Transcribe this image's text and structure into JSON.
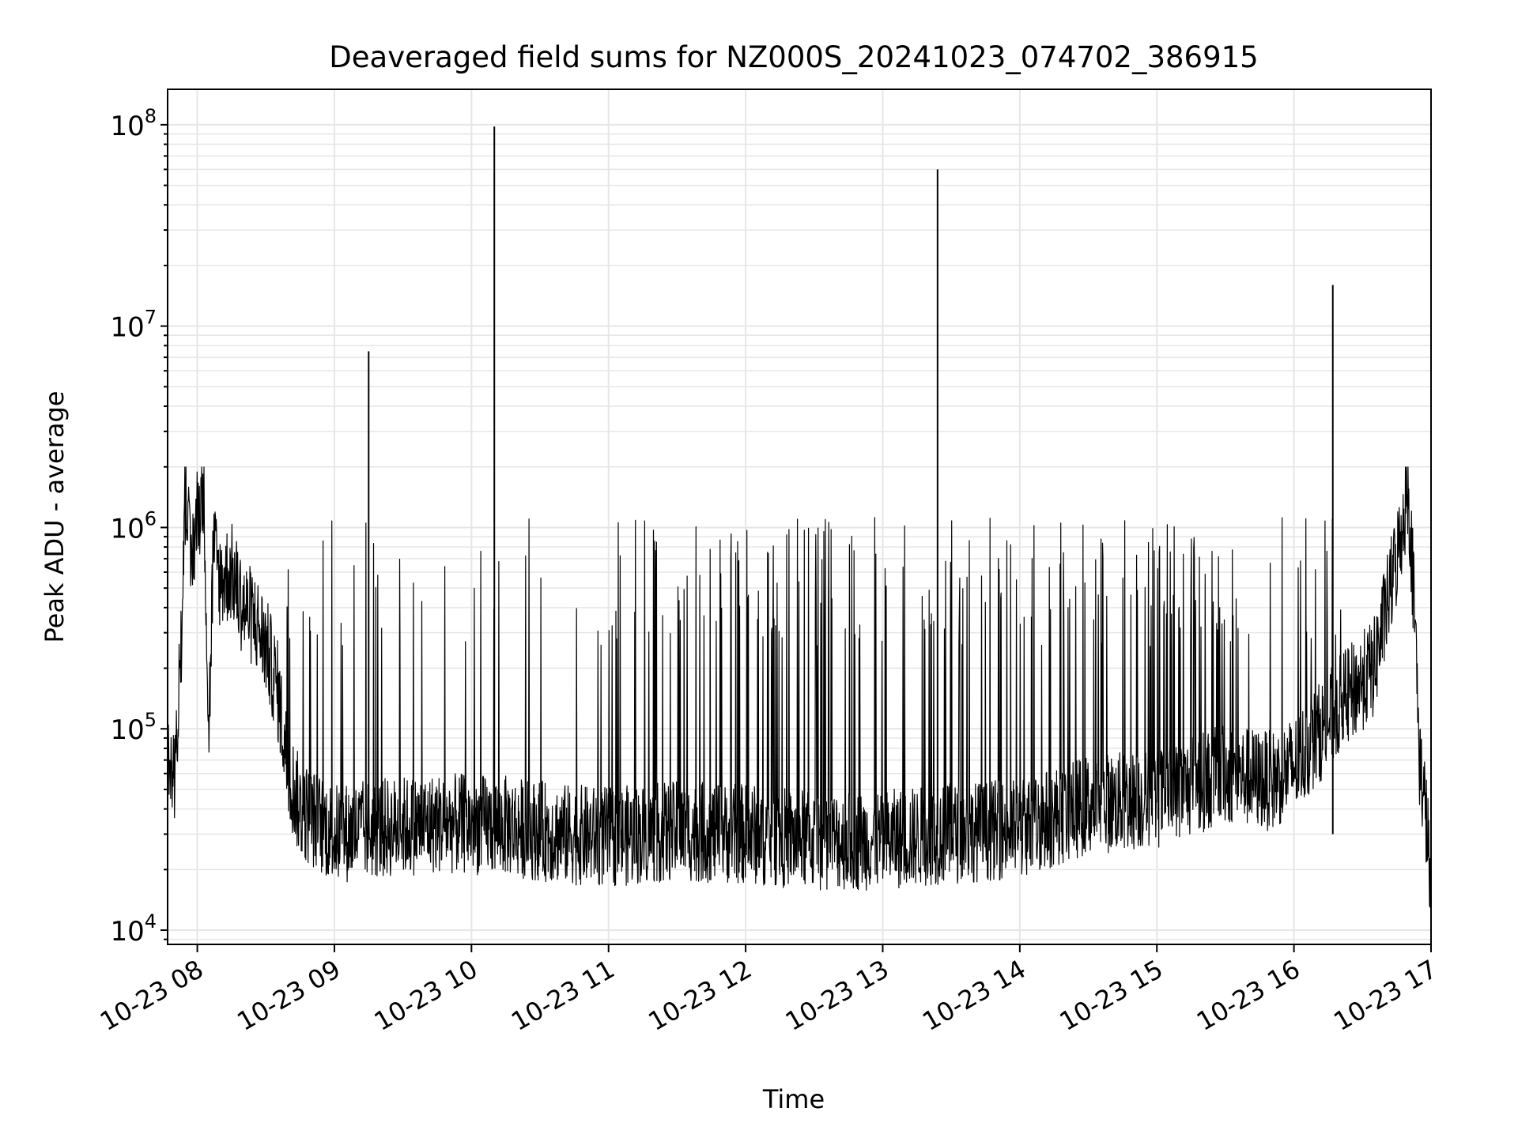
{
  "chart_data": {
    "type": "line",
    "title": "Deaveraged field sums for NZ000S_20241023_074702_386915",
    "xlabel": "Time",
    "ylabel": "Peak ADU - average",
    "x_type": "datetime",
    "xlim": [
      "2024-10-23 07:47",
      "2024-10-23 17:00"
    ],
    "ylim": [
      8500,
      150000000
    ],
    "yscale": "log",
    "x_tick_labels": [
      "10-23 08",
      "10-23 09",
      "10-23 10",
      "10-23 11",
      "10-23 12",
      "10-23 13",
      "10-23 14",
      "10-23 15",
      "10-23 16",
      "10-23 17"
    ],
    "y_tick_labels": [
      {
        "base": "10",
        "exp": "4"
      },
      {
        "base": "10",
        "exp": "5"
      },
      {
        "base": "10",
        "exp": "6"
      },
      {
        "base": "10",
        "exp": "7"
      },
      {
        "base": "10",
        "exp": "8"
      }
    ],
    "grid": true,
    "line_color": "#000000",
    "grid_color": "#e6e6e6",
    "series": [
      {
        "points": [
          [
            "2024-10-23 07:47",
            70000
          ],
          [
            "2024-10-23 07:50",
            58000
          ],
          [
            "2024-10-23 07:53",
            250000
          ],
          [
            "2024-10-23 07:55",
            1900000
          ],
          [
            "2024-10-23 07:57",
            600000
          ],
          [
            "2024-10-23 08:00",
            1200000
          ],
          [
            "2024-10-23 08:03",
            1500000
          ],
          [
            "2024-10-23 08:05",
            90000
          ],
          [
            "2024-10-23 08:07",
            800000
          ],
          [
            "2024-10-23 08:10",
            550000
          ],
          [
            "2024-10-23 08:15",
            600000
          ],
          [
            "2024-10-23 08:20",
            400000
          ],
          [
            "2024-10-23 08:25",
            350000
          ],
          [
            "2024-10-23 08:30",
            260000
          ],
          [
            "2024-10-23 08:35",
            160000
          ],
          [
            "2024-10-23 08:40",
            60000
          ],
          [
            "2024-10-23 08:45",
            40000
          ],
          [
            "2024-10-23 09:00",
            30000
          ],
          [
            "2024-10-23 09:15",
            7500000
          ],
          [
            "2024-10-23 09:20",
            32000
          ],
          [
            "2024-10-23 09:45",
            34000
          ],
          [
            "2024-10-23 10:10",
            98000000
          ],
          [
            "2024-10-23 10:15",
            33000
          ],
          [
            "2024-10-23 10:40",
            30000
          ],
          [
            "2024-10-23 11:00",
            29000
          ],
          [
            "2024-10-23 11:30",
            31000
          ],
          [
            "2024-10-23 12:00",
            30000
          ],
          [
            "2024-10-23 12:30",
            28000
          ],
          [
            "2024-10-23 13:00",
            28000
          ],
          [
            "2024-10-23 13:24",
            60000000
          ],
          [
            "2024-10-23 13:26",
            30000
          ],
          [
            "2024-10-23 14:00",
            32000
          ],
          [
            "2024-10-23 14:30",
            42000
          ],
          [
            "2024-10-23 15:00",
            45000
          ],
          [
            "2024-10-23 15:30",
            60000
          ],
          [
            "2024-10-23 15:50",
            55000
          ],
          [
            "2024-10-23 16:00",
            65000
          ],
          [
            "2024-10-23 16:17",
            16000000
          ],
          [
            "2024-10-23 16:20",
            130000
          ],
          [
            "2024-10-23 16:35",
            200000
          ],
          [
            "2024-10-23 16:45",
            700000
          ],
          [
            "2024-10-23 16:50",
            1600000
          ],
          [
            "2024-10-23 16:53",
            350000
          ],
          [
            "2024-10-23 16:55",
            70000
          ],
          [
            "2024-10-23 16:58",
            35000
          ],
          [
            "2024-10-23 17:00",
            15000
          ]
        ]
      }
    ]
  }
}
